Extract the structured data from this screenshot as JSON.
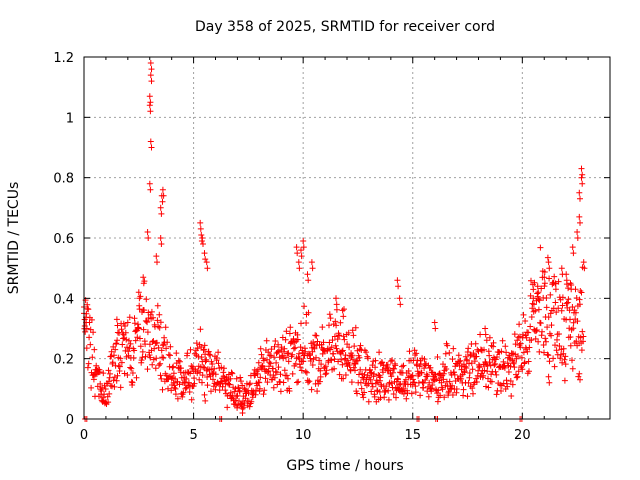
{
  "chart_data": {
    "type": "scatter",
    "title": "Day 358 of 2025, SRMTID for receiver cord",
    "xlabel": "GPS time / hours",
    "ylabel": "SRMTID / TECUs",
    "xlim": [
      0,
      24
    ],
    "ylim": [
      0,
      1.2
    ],
    "grid": true,
    "marker": "+",
    "color": "#ff0000",
    "x_ticks": [
      {
        "value": 0,
        "label": "0"
      },
      {
        "value": 5,
        "label": "5"
      },
      {
        "value": 10,
        "label": "10"
      },
      {
        "value": 15,
        "label": "15"
      },
      {
        "value": 20,
        "label": "20"
      }
    ],
    "y_ticks": [
      {
        "value": 0,
        "label": "0"
      },
      {
        "value": 0.2,
        "label": "0.2"
      },
      {
        "value": 0.4,
        "label": "0.4"
      },
      {
        "value": 0.6,
        "label": "0.6"
      },
      {
        "value": 0.8,
        "label": "0.8"
      },
      {
        "value": 1.0,
        "label": "1"
      },
      {
        "value": 1.2,
        "label": "1.2"
      }
    ],
    "series": [
      {
        "name": "SRMTID",
        "trend": [
          [
            0.0,
            0.3
          ],
          [
            0.3,
            0.24
          ],
          [
            0.6,
            0.13
          ],
          [
            1.0,
            0.1
          ],
          [
            1.3,
            0.17
          ],
          [
            1.7,
            0.25
          ],
          [
            2.2,
            0.22
          ],
          [
            2.6,
            0.3
          ],
          [
            3.0,
            0.28
          ],
          [
            3.5,
            0.22
          ],
          [
            4.0,
            0.15
          ],
          [
            4.6,
            0.13
          ],
          [
            5.1,
            0.18
          ],
          [
            5.5,
            0.2
          ],
          [
            6.0,
            0.14
          ],
          [
            6.5,
            0.11
          ],
          [
            7.0,
            0.08
          ],
          [
            7.5,
            0.09
          ],
          [
            8.0,
            0.14
          ],
          [
            8.5,
            0.18
          ],
          [
            9.0,
            0.18
          ],
          [
            9.5,
            0.22
          ],
          [
            10.0,
            0.24
          ],
          [
            10.5,
            0.19
          ],
          [
            11.0,
            0.2
          ],
          [
            11.5,
            0.25
          ],
          [
            12.0,
            0.24
          ],
          [
            12.5,
            0.17
          ],
          [
            13.0,
            0.13
          ],
          [
            13.5,
            0.14
          ],
          [
            14.0,
            0.12
          ],
          [
            14.5,
            0.12
          ],
          [
            15.0,
            0.15
          ],
          [
            15.5,
            0.14
          ],
          [
            16.0,
            0.12
          ],
          [
            16.5,
            0.15
          ],
          [
            17.0,
            0.16
          ],
          [
            17.5,
            0.15
          ],
          [
            18.0,
            0.18
          ],
          [
            18.5,
            0.2
          ],
          [
            19.0,
            0.18
          ],
          [
            19.5,
            0.17
          ],
          [
            20.0,
            0.22
          ],
          [
            20.5,
            0.35
          ],
          [
            21.0,
            0.38
          ],
          [
            21.5,
            0.34
          ],
          [
            22.0,
            0.3
          ],
          [
            22.5,
            0.32
          ],
          [
            22.8,
            0.38
          ]
        ],
        "spikes": [
          [
            0.0,
            0.35
          ],
          [
            0.1,
            0.32
          ],
          [
            1.5,
            0.33
          ],
          [
            2.5,
            0.42
          ],
          [
            2.7,
            0.47
          ],
          [
            2.9,
            0.62
          ],
          [
            3.0,
            0.78
          ],
          [
            3.05,
            0.92
          ],
          [
            3.0,
            1.04
          ],
          [
            3.0,
            1.07
          ],
          [
            3.05,
            1.14
          ],
          [
            3.05,
            1.18
          ],
          [
            3.3,
            0.54
          ],
          [
            3.5,
            0.6
          ],
          [
            3.5,
            0.7
          ],
          [
            3.55,
            0.74
          ],
          [
            3.6,
            0.76
          ],
          [
            5.3,
            0.65
          ],
          [
            5.35,
            0.61
          ],
          [
            5.4,
            0.6
          ],
          [
            5.5,
            0.55
          ],
          [
            5.6,
            0.52
          ],
          [
            9.7,
            0.57
          ],
          [
            9.8,
            0.52
          ],
          [
            9.9,
            0.56
          ],
          [
            10.0,
            0.59
          ],
          [
            10.2,
            0.48
          ],
          [
            10.4,
            0.52
          ],
          [
            11.5,
            0.4
          ],
          [
            11.8,
            0.36
          ],
          [
            14.3,
            0.46
          ],
          [
            14.4,
            0.4
          ],
          [
            16.0,
            0.32
          ],
          [
            18.3,
            0.3
          ],
          [
            20.5,
            0.4
          ],
          [
            20.7,
            0.44
          ],
          [
            21.0,
            0.47
          ],
          [
            21.2,
            0.52
          ],
          [
            21.5,
            0.45
          ],
          [
            21.8,
            0.5
          ],
          [
            22.0,
            0.48
          ],
          [
            22.2,
            0.45
          ],
          [
            22.3,
            0.57
          ],
          [
            22.5,
            0.62
          ],
          [
            22.6,
            0.67
          ],
          [
            22.6,
            0.75
          ],
          [
            22.7,
            0.8
          ],
          [
            22.7,
            0.83
          ],
          [
            22.8,
            0.52
          ],
          [
            22.6,
            0.15
          ],
          [
            21.2,
            0.14
          ],
          [
            5.5,
            0.08
          ],
          [
            7.2,
            0.04
          ],
          [
            13.5,
            0.09
          ]
        ],
        "zero_points": [
          0.05,
          6.2,
          15.2,
          16.05,
          19.9
        ]
      }
    ]
  }
}
